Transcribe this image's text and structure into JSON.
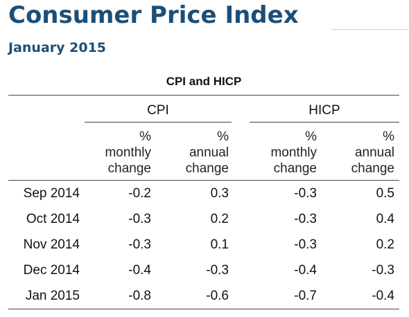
{
  "title": "Consumer Price Index",
  "subtitle": "January 2015",
  "table": {
    "caption": "CPI and HICP",
    "groups": [
      "CPI",
      "HICP"
    ],
    "column_headers": [
      [
        "%",
        "monthly",
        "change"
      ],
      [
        "%",
        "annual",
        "change"
      ],
      [
        "%",
        "monthly",
        "change"
      ],
      [
        "%",
        "annual",
        "change"
      ]
    ],
    "rows": [
      {
        "label": "Sep 2014",
        "values": [
          "-0.2",
          "0.3",
          "-0.3",
          "0.5"
        ]
      },
      {
        "label": "Oct 2014",
        "values": [
          "-0.3",
          "0.2",
          "-0.3",
          "0.4"
        ]
      },
      {
        "label": "Nov 2014",
        "values": [
          "-0.3",
          "0.1",
          "-0.3",
          "0.2"
        ]
      },
      {
        "label": "Dec 2014",
        "values": [
          "-0.4",
          "-0.3",
          "-0.4",
          "-0.3"
        ]
      },
      {
        "label": "Jan 2015",
        "values": [
          "-0.8",
          "-0.6",
          "-0.7",
          "-0.4"
        ]
      }
    ]
  },
  "colors": {
    "heading": "#1c4f78",
    "text": "#111111",
    "rule": "#444444"
  }
}
